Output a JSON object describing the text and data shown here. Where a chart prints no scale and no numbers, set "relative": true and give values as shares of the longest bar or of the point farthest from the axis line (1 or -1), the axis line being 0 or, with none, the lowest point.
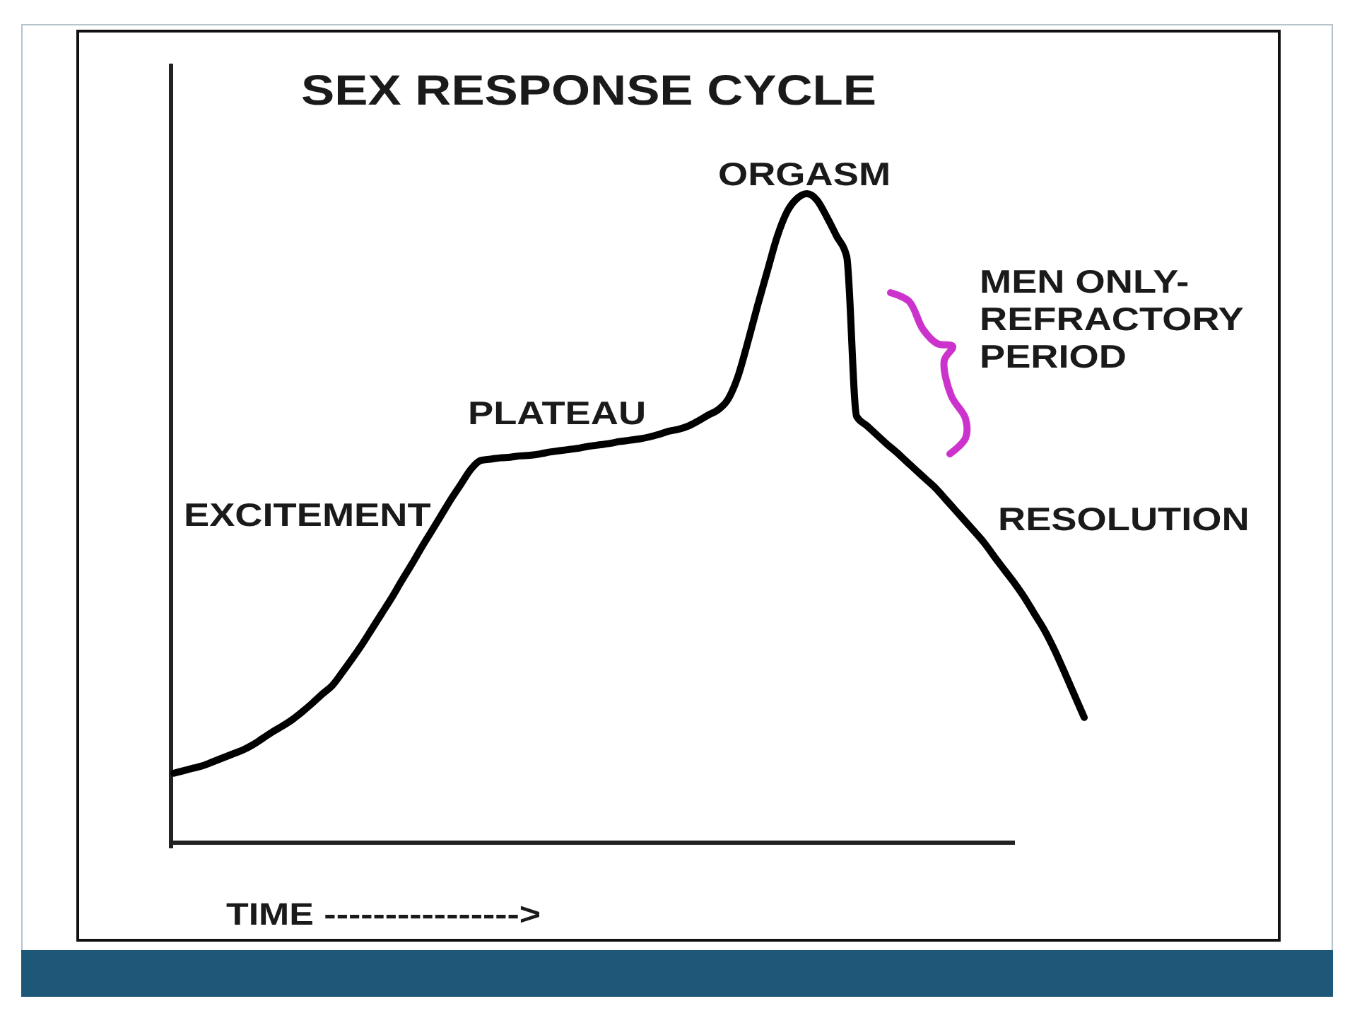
{
  "chart_data": {
    "type": "line",
    "title": "SEX RESPONSE CYCLE",
    "xlabel": "TIME ---------------->",
    "relative": true,
    "marker": "none",
    "line_style": "solid",
    "categories": [
      null,
      null,
      null,
      null,
      null,
      null,
      null,
      null,
      null,
      null,
      null,
      null,
      null,
      null,
      null,
      null,
      null,
      null,
      null,
      null,
      null,
      null,
      null,
      null,
      null,
      null,
      null,
      null,
      null,
      null,
      null,
      null,
      null,
      null,
      null,
      null,
      null,
      null,
      null,
      null,
      null,
      null,
      null,
      null,
      null,
      null,
      null,
      null,
      null,
      null,
      null,
      null,
      null,
      null,
      null,
      null,
      null,
      null,
      null,
      null,
      null,
      null,
      null,
      null,
      null,
      null,
      null,
      null,
      null,
      null,
      null,
      null,
      null,
      null,
      null,
      null,
      null,
      null,
      null,
      null,
      null,
      null,
      null,
      null,
      null,
      null,
      null,
      null,
      null,
      null,
      null,
      null,
      null
    ],
    "series": [
      {
        "color": "#000000",
        "values": [
          0.107,
          0.111,
          0.115,
          0.119,
          0.125,
          0.131,
          0.137,
          0.143,
          0.151,
          0.161,
          0.171,
          0.18,
          0.19,
          0.202,
          0.215,
          0.229,
          0.242,
          0.262,
          0.283,
          0.305,
          0.329,
          0.353,
          0.377,
          0.403,
          0.428,
          0.454,
          0.479,
          0.504,
          0.529,
          0.552,
          0.575,
          0.589,
          0.591,
          0.593,
          0.594,
          0.596,
          0.597,
          0.599,
          0.602,
          0.604,
          0.606,
          0.608,
          0.611,
          0.613,
          0.615,
          0.618,
          0.62,
          0.622,
          0.625,
          0.629,
          0.634,
          0.637,
          0.642,
          0.65,
          0.659,
          0.667,
          0.683,
          0.718,
          0.771,
          0.828,
          0.882,
          0.935,
          0.973,
          0.993,
          1.0,
          0.99,
          0.964,
          0.934,
          0.903,
          0.657,
          0.643,
          0.629,
          0.615,
          0.602,
          0.588,
          0.574,
          0.56,
          0.546,
          0.529,
          0.512,
          0.495,
          0.478,
          0.46,
          0.439,
          0.419,
          0.399,
          0.377,
          0.352,
          0.327,
          0.297,
          0.263,
          0.228,
          0.193
        ]
      }
    ],
    "annotations": [
      "EXCITEMENT",
      "PLATEAU",
      "ORGASM",
      "MEN ONLY-\nREFRACTORY\nPERIOD",
      "RESOLUTION"
    ]
  }
}
